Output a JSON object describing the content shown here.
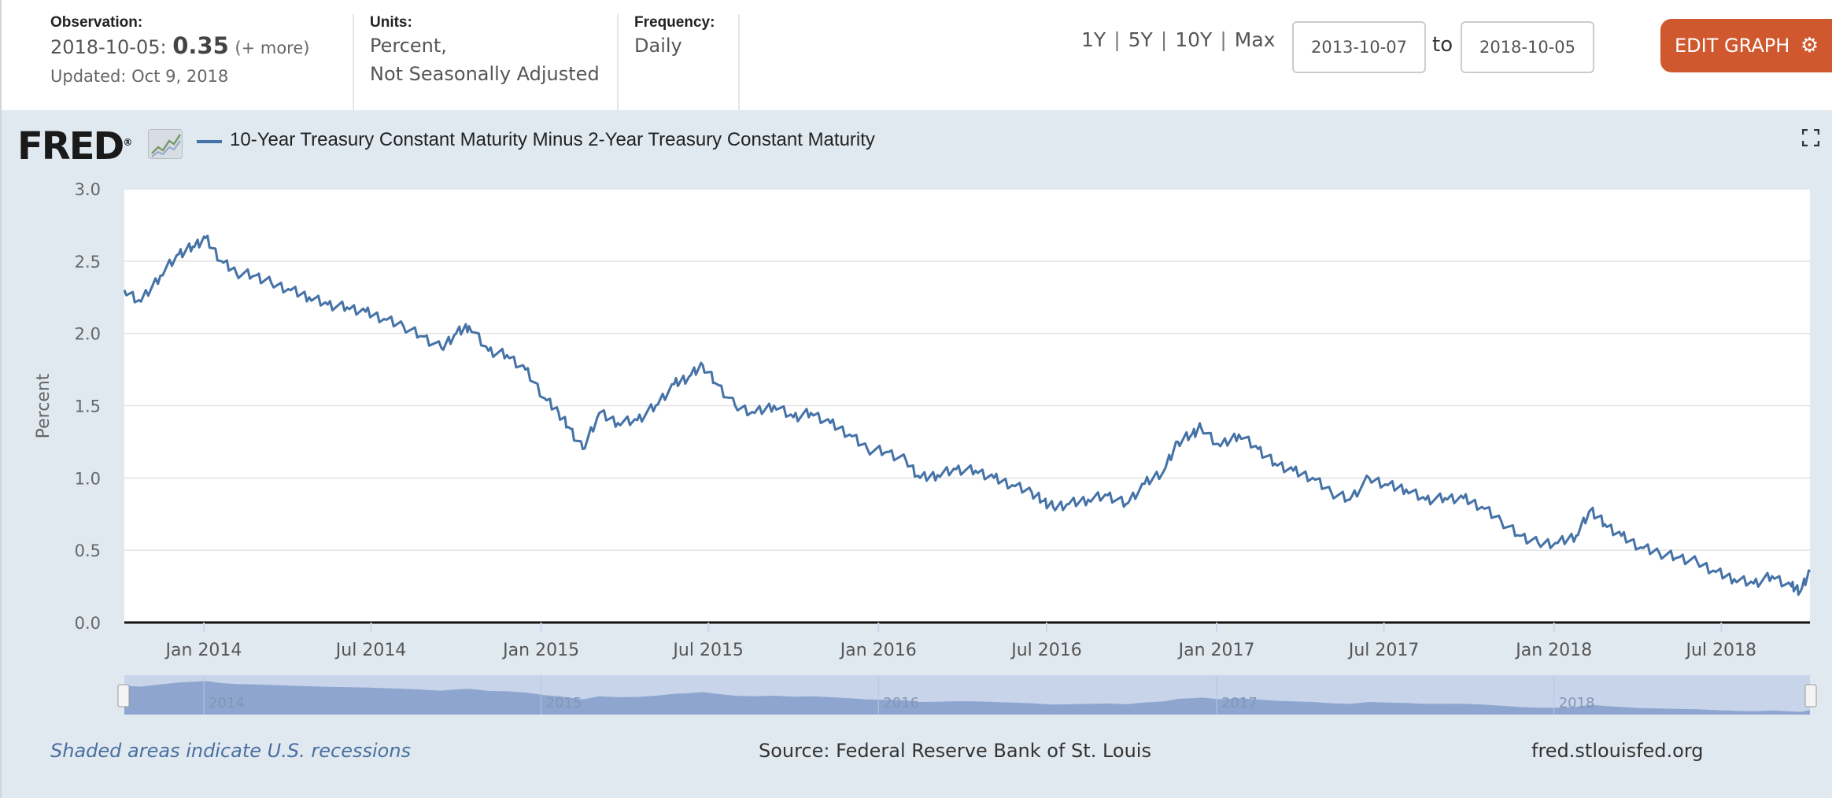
{
  "header": {
    "observation": {
      "label": "Observation:",
      "date": "2018-10-05:",
      "value": "0.35",
      "more": "(+ more)",
      "updated": "Updated: Oct 9, 2018"
    },
    "units": {
      "label": "Units:",
      "line1": "Percent,",
      "line2": "Not Seasonally Adjusted"
    },
    "frequency": {
      "label": "Frequency:",
      "value": "Daily"
    },
    "range_buttons": [
      "1Y",
      "5Y",
      "10Y",
      "Max"
    ],
    "range_separator": "|",
    "start_date": "2013-10-07",
    "to_label": "to",
    "end_date": "2018-10-05",
    "edit_button": "EDIT GRAPH"
  },
  "brand": {
    "logo": "FRED",
    "reg": "®"
  },
  "legend": {
    "series_name": "10-Year Treasury Constant Maturity Minus 2-Year Treasury Constant Maturity"
  },
  "footer": {
    "recessions_note": "Shaded areas indicate U.S. recessions",
    "source": "Source: Federal Reserve Bank of St. Louis",
    "site": "fred.stlouisfed.org"
  },
  "colors": {
    "series": "#4572a7",
    "edit_button": "#d0582f",
    "panel": "#e1e9f0",
    "navigator": "#9fb4d6"
  },
  "icons": {
    "gear": "gear-icon",
    "fullscreen": "fullscreen-icon",
    "chart": "chart-icon"
  },
  "chart_data": {
    "type": "line",
    "title": "10-Year Treasury Constant Maturity Minus 2-Year Treasury Constant Maturity",
    "ylabel": "Percent",
    "ylim": [
      0,
      3.0
    ],
    "yticks": [
      "0.0",
      "0.5",
      "1.0",
      "1.5",
      "2.0",
      "2.5",
      "3.0"
    ],
    "xlim": [
      "2013-10-07",
      "2018-10-05"
    ],
    "xticks": [
      {
        "date": "2014-01-01",
        "label": "Jan 2014"
      },
      {
        "date": "2014-07-01",
        "label": "Jul 2014"
      },
      {
        "date": "2015-01-01",
        "label": "Jan 2015"
      },
      {
        "date": "2015-07-01",
        "label": "Jul 2015"
      },
      {
        "date": "2016-01-01",
        "label": "Jan 2016"
      },
      {
        "date": "2016-07-01",
        "label": "Jul 2016"
      },
      {
        "date": "2017-01-01",
        "label": "Jan 2017"
      },
      {
        "date": "2017-07-01",
        "label": "Jul 2017"
      },
      {
        "date": "2018-01-01",
        "label": "Jan 2018"
      },
      {
        "date": "2018-07-01",
        "label": "Jul 2018"
      }
    ],
    "navigator_labels": [
      {
        "date": "2014-01-01",
        "label": "2014"
      },
      {
        "date": "2015-01-01",
        "label": "2015"
      },
      {
        "date": "2016-01-01",
        "label": "2016"
      },
      {
        "date": "2017-01-01",
        "label": "2017"
      },
      {
        "date": "2018-01-01",
        "label": "2018"
      }
    ],
    "grid": true,
    "legend": "top-left",
    "series": [
      {
        "name": "10-Year Treasury Constant Maturity Minus 2-Year Treasury Constant Maturity",
        "x": [
          "2013-10-07",
          "2013-10-25",
          "2013-11-15",
          "2013-12-05",
          "2013-12-20",
          "2014-01-03",
          "2014-01-20",
          "2014-02-05",
          "2014-02-25",
          "2014-03-15",
          "2014-04-05",
          "2014-04-25",
          "2014-05-15",
          "2014-06-05",
          "2014-06-25",
          "2014-07-15",
          "2014-08-05",
          "2014-08-25",
          "2014-09-15",
          "2014-10-01",
          "2014-10-15",
          "2014-11-05",
          "2014-11-25",
          "2014-12-15",
          "2015-01-05",
          "2015-01-20",
          "2015-01-31",
          "2015-02-15",
          "2015-03-05",
          "2015-03-25",
          "2015-04-15",
          "2015-05-05",
          "2015-05-25",
          "2015-06-10",
          "2015-06-25",
          "2015-07-10",
          "2015-07-30",
          "2015-08-20",
          "2015-09-10",
          "2015-10-01",
          "2015-10-20",
          "2015-11-10",
          "2015-12-01",
          "2015-12-20",
          "2016-01-10",
          "2016-01-31",
          "2016-02-15",
          "2016-03-05",
          "2016-03-25",
          "2016-04-15",
          "2016-05-05",
          "2016-05-25",
          "2016-06-15",
          "2016-06-27",
          "2016-07-08",
          "2016-07-25",
          "2016-08-15",
          "2016-09-05",
          "2016-09-25",
          "2016-10-15",
          "2016-11-05",
          "2016-11-20",
          "2016-12-05",
          "2016-12-15",
          "2017-01-05",
          "2017-01-25",
          "2017-02-15",
          "2017-03-05",
          "2017-03-25",
          "2017-04-15",
          "2017-05-05",
          "2017-05-25",
          "2017-06-15",
          "2017-07-05",
          "2017-07-25",
          "2017-08-15",
          "2017-09-05",
          "2017-09-25",
          "2017-10-15",
          "2017-11-05",
          "2017-11-25",
          "2017-12-15",
          "2018-01-05",
          "2018-01-25",
          "2018-02-10",
          "2018-02-25",
          "2018-03-15",
          "2018-04-05",
          "2018-04-25",
          "2018-05-15",
          "2018-06-05",
          "2018-06-25",
          "2018-07-15",
          "2018-08-05",
          "2018-08-25",
          "2018-09-15",
          "2018-09-25",
          "2018-10-05"
        ],
        "values": [
          2.3,
          2.22,
          2.4,
          2.55,
          2.6,
          2.66,
          2.5,
          2.42,
          2.4,
          2.35,
          2.3,
          2.25,
          2.2,
          2.18,
          2.15,
          2.1,
          2.05,
          1.98,
          1.9,
          2.0,
          2.05,
          1.88,
          1.85,
          1.75,
          1.55,
          1.45,
          1.35,
          1.2,
          1.45,
          1.38,
          1.4,
          1.5,
          1.65,
          1.7,
          1.78,
          1.65,
          1.5,
          1.45,
          1.5,
          1.42,
          1.45,
          1.38,
          1.3,
          1.2,
          1.18,
          1.12,
          1.0,
          1.02,
          1.06,
          1.05,
          1.0,
          0.95,
          0.9,
          0.84,
          0.8,
          0.82,
          0.85,
          0.88,
          0.82,
          0.96,
          1.05,
          1.25,
          1.3,
          1.35,
          1.22,
          1.3,
          1.2,
          1.1,
          1.05,
          1.0,
          0.9,
          0.85,
          1.0,
          0.95,
          0.92,
          0.85,
          0.86,
          0.86,
          0.8,
          0.7,
          0.6,
          0.55,
          0.55,
          0.6,
          0.78,
          0.68,
          0.6,
          0.52,
          0.48,
          0.45,
          0.42,
          0.35,
          0.3,
          0.27,
          0.32,
          0.25,
          0.22,
          0.35
        ]
      }
    ]
  }
}
